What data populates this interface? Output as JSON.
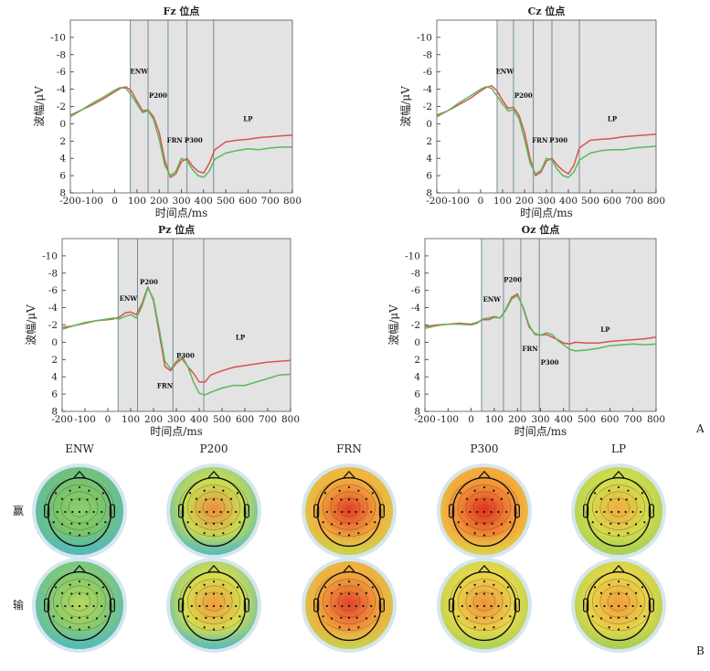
{
  "chart_data": [
    {
      "type": "line",
      "title": "Fz 位点",
      "xlabel": "时间点/ms",
      "ylabel": "波幅/μV",
      "xlim": [
        -200,
        800
      ],
      "ylim": [
        -12,
        8
      ],
      "y_inverted": true,
      "xticks": [
        -200,
        -100,
        0,
        100,
        200,
        300,
        400,
        500,
        600,
        700,
        800
      ],
      "yticks": [
        -10,
        -8,
        -6,
        -4,
        -2,
        0,
        2,
        4,
        6,
        8
      ],
      "windows": [
        [
          70,
          150
        ],
        [
          150,
          240
        ],
        [
          240,
          325
        ],
        [
          325,
          445
        ],
        [
          445,
          800
        ]
      ],
      "components": [
        {
          "label": "ENW",
          "x": 110,
          "y": -5.8
        },
        {
          "label": "P200",
          "x": 195,
          "y": -3.0
        },
        {
          "label": "FRN",
          "x": 270,
          "y": 2.2
        },
        {
          "label": "P300",
          "x": 355,
          "y": 2.2
        },
        {
          "label": "LP",
          "x": 600,
          "y": -0.3
        }
      ],
      "series": [
        {
          "color": "#d9534f",
          "x": [
            -200,
            -150,
            -100,
            -50,
            0,
            25,
            50,
            75,
            100,
            125,
            150,
            175,
            200,
            225,
            250,
            275,
            300,
            325,
            350,
            375,
            400,
            425,
            450,
            500,
            550,
            600,
            650,
            700,
            750,
            800
          ],
          "values": [
            -1.0,
            -1.6,
            -2.2,
            -2.9,
            -3.7,
            -4.1,
            -4.3,
            -3.8,
            -2.6,
            -1.5,
            -1.6,
            -0.8,
            1.0,
            4.2,
            6.2,
            5.8,
            4.4,
            4.0,
            4.9,
            5.5,
            5.7,
            4.6,
            3.0,
            2.1,
            1.9,
            1.8,
            1.6,
            1.5,
            1.4,
            1.3
          ]
        },
        {
          "color": "#5cb85c",
          "x": [
            -200,
            -150,
            -100,
            -50,
            0,
            25,
            50,
            75,
            100,
            125,
            150,
            175,
            200,
            225,
            250,
            275,
            300,
            325,
            350,
            375,
            400,
            425,
            450,
            500,
            550,
            600,
            650,
            700,
            750,
            800
          ],
          "values": [
            -0.8,
            -1.6,
            -2.4,
            -3.1,
            -3.9,
            -4.2,
            -4.1,
            -3.3,
            -2.3,
            -1.3,
            -1.5,
            -0.5,
            1.8,
            4.8,
            6.0,
            5.5,
            4.0,
            4.3,
            5.3,
            6.0,
            6.2,
            5.5,
            4.1,
            3.4,
            3.1,
            2.9,
            3.0,
            2.8,
            2.7,
            2.7
          ]
        }
      ]
    },
    {
      "type": "line",
      "title": "Cz 位点",
      "xlabel": "时间点/ms",
      "ylabel": "波幅/μV",
      "xlim": [
        -200,
        800
      ],
      "ylim": [
        -12,
        8
      ],
      "y_inverted": true,
      "xticks": [
        -200,
        -100,
        0,
        100,
        200,
        300,
        400,
        500,
        600,
        700,
        800
      ],
      "yticks": [
        -10,
        -8,
        -6,
        -4,
        -2,
        0,
        2,
        4,
        6,
        8
      ],
      "windows": [
        [
          75,
          150
        ],
        [
          150,
          240
        ],
        [
          240,
          325
        ],
        [
          325,
          450
        ],
        [
          450,
          800
        ]
      ],
      "components": [
        {
          "label": "ENW",
          "x": 110,
          "y": -5.8
        },
        {
          "label": "P200",
          "x": 195,
          "y": -3.0
        },
        {
          "label": "FRN",
          "x": 270,
          "y": 2.2
        },
        {
          "label": "P300",
          "x": 355,
          "y": 2.2
        },
        {
          "label": "LP",
          "x": 600,
          "y": -0.3
        }
      ],
      "series": [
        {
          "color": "#d9534f",
          "x": [
            -200,
            -150,
            -100,
            -50,
            0,
            25,
            50,
            75,
            100,
            125,
            150,
            175,
            200,
            225,
            250,
            275,
            300,
            325,
            350,
            375,
            400,
            425,
            450,
            500,
            550,
            600,
            650,
            700,
            750,
            800
          ],
          "values": [
            -1.0,
            -1.5,
            -2.2,
            -2.9,
            -3.8,
            -4.2,
            -4.4,
            -3.8,
            -2.7,
            -1.8,
            -1.9,
            -1.0,
            1.0,
            4.0,
            6.0,
            5.6,
            4.3,
            4.0,
            4.8,
            5.4,
            5.8,
            4.8,
            2.8,
            1.9,
            1.8,
            1.7,
            1.5,
            1.4,
            1.3,
            1.2
          ]
        },
        {
          "color": "#5cb85c",
          "x": [
            -200,
            -150,
            -100,
            -50,
            0,
            25,
            50,
            75,
            100,
            125,
            150,
            175,
            200,
            225,
            250,
            275,
            300,
            325,
            350,
            375,
            400,
            425,
            450,
            500,
            550,
            600,
            650,
            700,
            750,
            800
          ],
          "values": [
            -0.8,
            -1.5,
            -2.4,
            -3.2,
            -4.0,
            -4.3,
            -4.1,
            -3.2,
            -2.3,
            -1.5,
            -1.6,
            -0.6,
            1.8,
            4.5,
            5.8,
            5.4,
            4.0,
            4.2,
            5.3,
            6.0,
            6.2,
            5.6,
            4.2,
            3.4,
            3.1,
            3.0,
            3.0,
            2.8,
            2.7,
            2.6
          ]
        }
      ]
    },
    {
      "type": "line",
      "title": "Pz 位点",
      "xlabel": "时间点/ms",
      "ylabel": "波幅/μV",
      "xlim": [
        -200,
        800
      ],
      "ylim": [
        -12,
        8
      ],
      "y_inverted": true,
      "xticks": [
        -200,
        -100,
        0,
        100,
        200,
        300,
        400,
        500,
        600,
        700,
        800
      ],
      "yticks": [
        -10,
        -8,
        -6,
        -4,
        -2,
        0,
        2,
        4,
        6,
        8
      ],
      "windows": [
        [
          45,
          130
        ],
        [
          130,
          285
        ],
        [
          285,
          420
        ],
        [
          420,
          800
        ]
      ],
      "components": [
        {
          "label": "ENW",
          "x": 90,
          "y": -4.8
        },
        {
          "label": "P200",
          "x": 180,
          "y": -6.7
        },
        {
          "label": "FRN",
          "x": 250,
          "y": 5.3
        },
        {
          "label": "P300",
          "x": 340,
          "y": 1.8
        },
        {
          "label": "LP",
          "x": 580,
          "y": -0.3
        }
      ],
      "series": [
        {
          "color": "#d9534f",
          "x": [
            -200,
            -150,
            -100,
            -50,
            0,
            25,
            50,
            75,
            100,
            125,
            150,
            175,
            200,
            225,
            250,
            275,
            300,
            325,
            350,
            375,
            400,
            425,
            450,
            500,
            550,
            600,
            650,
            700,
            750,
            800
          ],
          "values": [
            -1.7,
            -1.9,
            -2.2,
            -2.5,
            -2.6,
            -2.7,
            -2.9,
            -3.4,
            -3.5,
            -3.2,
            -4.5,
            -6.4,
            -4.8,
            -1.0,
            2.8,
            3.3,
            2.4,
            1.9,
            2.8,
            3.6,
            4.6,
            4.6,
            3.8,
            3.3,
            2.9,
            2.7,
            2.5,
            2.3,
            2.2,
            2.1
          ]
        },
        {
          "color": "#5cb85c",
          "x": [
            -200,
            -150,
            -100,
            -50,
            0,
            25,
            50,
            75,
            100,
            125,
            150,
            175,
            200,
            225,
            250,
            275,
            300,
            325,
            350,
            375,
            400,
            425,
            450,
            500,
            550,
            600,
            650,
            700,
            750,
            800
          ],
          "values": [
            -1.5,
            -1.9,
            -2.3,
            -2.5,
            -2.7,
            -2.8,
            -2.7,
            -3.0,
            -3.2,
            -2.8,
            -4.2,
            -6.3,
            -5.0,
            -1.5,
            2.2,
            3.1,
            2.2,
            1.6,
            2.8,
            4.6,
            5.9,
            6.1,
            5.8,
            5.3,
            5.0,
            5.0,
            4.6,
            4.2,
            3.8,
            3.7
          ]
        }
      ]
    },
    {
      "type": "line",
      "title": "Oz 位点",
      "xlabel": "时间点/ms",
      "ylabel": "波幅/μV",
      "xlim": [
        -200,
        800
      ],
      "ylim": [
        -12,
        8
      ],
      "y_inverted": true,
      "xticks": [
        -200,
        -100,
        0,
        100,
        200,
        300,
        400,
        500,
        600,
        700,
        800
      ],
      "yticks": [
        -10,
        -8,
        -6,
        -4,
        -2,
        0,
        2,
        4,
        6,
        8
      ],
      "windows": [
        [
          45,
          140
        ],
        [
          140,
          215
        ],
        [
          215,
          295
        ],
        [
          295,
          425
        ],
        [
          425,
          800
        ]
      ],
      "components": [
        {
          "label": "ENW",
          "x": 90,
          "y": -4.7
        },
        {
          "label": "P200",
          "x": 180,
          "y": -7.0
        },
        {
          "label": "FRN",
          "x": 255,
          "y": 1.0
        },
        {
          "label": "P300",
          "x": 340,
          "y": 2.6
        },
        {
          "label": "LP",
          "x": 580,
          "y": -1.2
        }
      ],
      "series": [
        {
          "color": "#d9534f",
          "x": [
            -200,
            -150,
            -100,
            -50,
            0,
            25,
            50,
            75,
            100,
            125,
            150,
            175,
            200,
            225,
            250,
            275,
            300,
            325,
            350,
            375,
            400,
            425,
            450,
            500,
            550,
            600,
            650,
            700,
            750,
            800
          ],
          "values": [
            -1.8,
            -2.0,
            -2.1,
            -2.2,
            -2.1,
            -2.3,
            -2.6,
            -2.6,
            -2.9,
            -2.8,
            -3.8,
            -5.2,
            -5.6,
            -4.0,
            -1.8,
            -1.0,
            -0.8,
            -0.9,
            -0.6,
            -0.3,
            0.1,
            0.2,
            0.0,
            0.1,
            0.1,
            -0.1,
            -0.2,
            -0.3,
            -0.4,
            -0.6
          ]
        },
        {
          "color": "#5cb85c",
          "x": [
            -200,
            -150,
            -100,
            -50,
            0,
            25,
            50,
            75,
            100,
            125,
            150,
            175,
            200,
            225,
            250,
            275,
            300,
            325,
            350,
            375,
            400,
            425,
            450,
            500,
            550,
            600,
            650,
            700,
            750,
            800
          ],
          "values": [
            -1.6,
            -1.9,
            -2.1,
            -2.1,
            -2.0,
            -2.2,
            -2.7,
            -2.8,
            -3.0,
            -2.8,
            -3.7,
            -5.0,
            -5.4,
            -4.1,
            -2.0,
            -0.9,
            -0.8,
            -1.1,
            -0.9,
            -0.2,
            0.3,
            0.8,
            1.0,
            0.9,
            0.7,
            0.4,
            0.3,
            0.2,
            0.3,
            0.2
          ]
        }
      ]
    }
  ],
  "panel_labels": {
    "a": "A",
    "b": "B"
  },
  "topo": {
    "columns": [
      "ENW",
      "P200",
      "FRN",
      "P300",
      "LP"
    ],
    "rows": [
      "赢",
      "输"
    ],
    "maps": [
      [
        {
          "center": "#8ccf6c",
          "level": 0.3,
          "back": "#4fb9c4",
          "front": "#7bc46a"
        },
        {
          "center": "#f08d3c",
          "level": 0.62,
          "back": "#4fb9c4",
          "front": "#c9dc52"
        },
        {
          "center": "#e53d26",
          "level": 0.88,
          "back": "#c6d64e",
          "front": "#f3b23f"
        },
        {
          "center": "#df3020",
          "level": 0.95,
          "back": "#d8d84a",
          "front": "#f6a53b"
        },
        {
          "center": "#f4aa3e",
          "level": 0.55,
          "back": "#a4d057",
          "front": "#d3dc4c"
        }
      ],
      [
        {
          "center": "#b8d95c",
          "level": 0.32,
          "back": "#4fb9c4",
          "front": "#8ccc68"
        },
        {
          "center": "#f39a3d",
          "level": 0.6,
          "back": "#4fb9c4",
          "front": "#d6dd4d"
        },
        {
          "center": "#e5402a",
          "level": 0.88,
          "back": "#c2d652",
          "front": "#f2ad3e"
        },
        {
          "center": "#f28f3d",
          "level": 0.75,
          "back": "#a7d158",
          "front": "#e8d84a"
        },
        {
          "center": "#f39a3d",
          "level": 0.68,
          "back": "#9fcf58",
          "front": "#e6d649"
        }
      ]
    ]
  }
}
